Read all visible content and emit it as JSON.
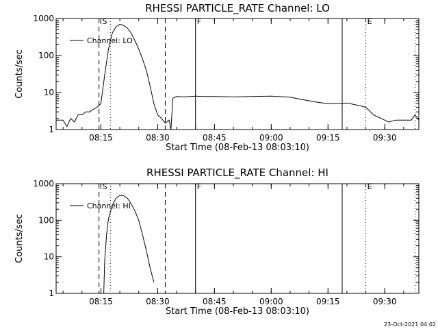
{
  "footer": {
    "timestamp": "23-Oct-2021 04:02"
  },
  "chart_data": [
    {
      "type": "line",
      "title": "RHESSI PARTICLE_RATE Channel: LO",
      "xlabel": "Start Time (08-Feb-13 08:03:10)",
      "ylabel": "Counts/sec",
      "xlim": [
        "08:03:10",
        "09:39:00"
      ],
      "ylim": [
        1,
        1000
      ],
      "yscale": "log",
      "xticks": [
        "08:15",
        "08:30",
        "08:45",
        "09:00",
        "09:15",
        "09:30"
      ],
      "yticks": [
        "1",
        "10",
        "100",
        "1000"
      ],
      "legend": "Channel: LO",
      "legend_position": "top-left",
      "markers": {
        "S": "08:15:00",
        "F": "08:40:00",
        "E": "09:25:00",
        "solid_extra": "09:18:45",
        "dashed": [
          "08:14:30",
          "08:32:00"
        ],
        "dotted": [
          "08:17:30",
          "09:25:00",
          "09:38:00"
        ]
      },
      "series": [
        {
          "name": "Channel: LO",
          "x": [
            "08:03:10",
            "08:05:00",
            "08:06:00",
            "08:07:00",
            "08:08:00",
            "08:09:00",
            "08:10:00",
            "08:11:00",
            "08:12:00",
            "08:13:00",
            "08:14:00",
            "08:15:00",
            "08:16:00",
            "08:17:00",
            "08:18:00",
            "08:19:00",
            "08:20:00",
            "08:21:00",
            "08:22:00",
            "08:23:00",
            "08:24:00",
            "08:25:00",
            "08:26:00",
            "08:27:00",
            "08:28:00",
            "08:29:00",
            "08:30:00",
            "08:31:00",
            "08:32:00",
            "08:33:00",
            "08:33:30",
            "08:34:00",
            "08:35:00",
            "08:37:00",
            "08:40:00",
            "08:42:00",
            "08:45:00",
            "08:50:00",
            "08:55:00",
            "09:00:00",
            "09:05:00",
            "09:08:00",
            "09:10:00",
            "09:12:00",
            "09:15:00",
            "09:18:00",
            "09:20:00",
            "09:23:00",
            "09:25:00",
            "09:27:00",
            "09:29:00",
            "09:31:00",
            "09:33:00",
            "09:35:00",
            "09:37:00",
            "09:38:00",
            "09:39:00"
          ],
          "y": [
            1.8,
            1.8,
            1.2,
            2.0,
            1.6,
            2.5,
            2.5,
            3.0,
            3.0,
            3.5,
            4.0,
            5.0,
            30,
            150,
            400,
            600,
            700,
            650,
            550,
            400,
            250,
            150,
            80,
            40,
            15,
            5,
            2.5,
            2.0,
            1.5,
            1.8,
            1.0,
            7.0,
            7.8,
            7.6,
            8.0,
            7.8,
            7.8,
            7.6,
            7.8,
            8.0,
            7.5,
            6.5,
            6.0,
            5.5,
            5.0,
            5.0,
            5.2,
            4.5,
            4.0,
            2.5,
            2.0,
            1.6,
            1.8,
            1.8,
            1.8,
            2.5,
            1.8
          ]
        }
      ]
    },
    {
      "type": "line",
      "title": "RHESSI PARTICLE_RATE Channel: HI",
      "xlabel": "Start Time (08-Feb-13 08:03:10)",
      "ylabel": "Counts/sec",
      "xlim": [
        "08:03:10",
        "09:39:00"
      ],
      "ylim": [
        1,
        1000
      ],
      "yscale": "log",
      "xticks": [
        "08:15",
        "08:30",
        "08:45",
        "09:00",
        "09:15",
        "09:30"
      ],
      "yticks": [
        "1",
        "10",
        "100",
        "1000"
      ],
      "legend": "Channel: HI",
      "legend_position": "top-left",
      "markers": {
        "S": "08:15:00",
        "F": "08:40:00",
        "E": "09:25:00",
        "solid_extra": "09:18:45",
        "dashed": [
          "08:14:30",
          "08:32:00"
        ],
        "dotted": [
          "08:17:30",
          "09:25:00",
          "09:38:00"
        ]
      },
      "series": [
        {
          "name": "Channel: HI",
          "x": [
            "08:15:45",
            "08:16:00",
            "08:16:30",
            "08:17:00",
            "08:18:00",
            "08:19:00",
            "08:20:00",
            "08:21:00",
            "08:22:00",
            "08:23:00",
            "08:24:00",
            "08:25:00",
            "08:26:00",
            "08:27:00",
            "08:28:00",
            "08:29:00"
          ],
          "y": [
            1.0,
            8,
            40,
            110,
            250,
            400,
            480,
            470,
            400,
            280,
            180,
            100,
            40,
            15,
            5,
            2
          ]
        }
      ]
    }
  ]
}
